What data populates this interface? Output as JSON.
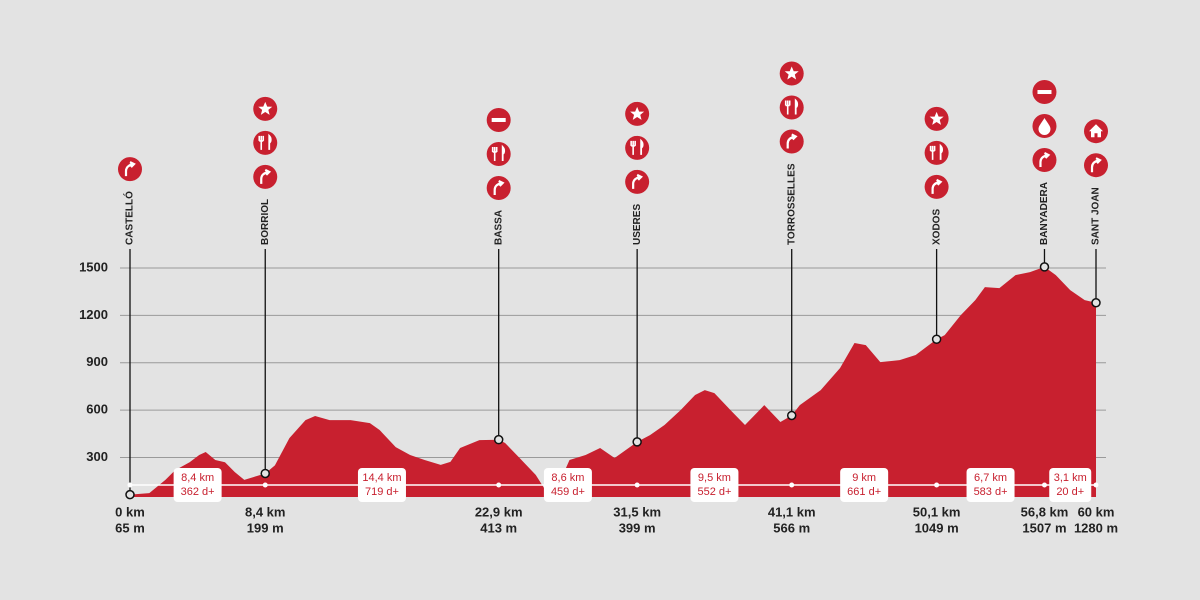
{
  "chart_data": {
    "type": "elevation-profile",
    "color": "#c8202f",
    "xlim": [
      0,
      60
    ],
    "ylim": [
      50,
      1500
    ],
    "yticks": [
      300,
      600,
      900,
      1200,
      1500
    ],
    "grid": true,
    "x": [
      0,
      1.2,
      2.2,
      2.8,
      3.7,
      4.3,
      4.7,
      5.3,
      5.9,
      6.5,
      7.1,
      8.4,
      9.0,
      9.9,
      10.9,
      11.5,
      12.4,
      13.7,
      14.9,
      15.5,
      16.5,
      17.4,
      18.3,
      19.3,
      19.9,
      20.5,
      21.7,
      22.9,
      23.3,
      24.2,
      25.2,
      25.8,
      26.5,
      27.3,
      28.3,
      29.2,
      30.1,
      31.5,
      32.3,
      33.2,
      34.2,
      35.1,
      35.7,
      36.3,
      37.3,
      38.2,
      39.4,
      40.4,
      41.1,
      41.6,
      42.9,
      44.1,
      45.0,
      45.7,
      46.6,
      47.8,
      48.8,
      50.1,
      50.6,
      51.6,
      52.5,
      53.1,
      54.0,
      55.0,
      55.9,
      56.8,
      57.5,
      58.4,
      59.3,
      60
    ],
    "values": [
      65,
      75,
      158,
      220,
      270,
      316,
      335,
      284,
      270,
      208,
      158,
      199,
      250,
      423,
      537,
      563,
      537,
      537,
      518,
      474,
      366,
      316,
      284,
      253,
      272,
      360,
      410,
      413,
      392,
      297,
      190,
      94,
      100,
      284,
      316,
      360,
      297,
      399,
      442,
      506,
      600,
      696,
      727,
      708,
      600,
      506,
      632,
      525,
      566,
      632,
      727,
      866,
      1025,
      1012,
      904,
      917,
      949,
      1049,
      1075,
      1202,
      1297,
      1379,
      1373,
      1455,
      1474,
      1507,
      1455,
      1360,
      1297,
      1280
    ],
    "checkpoints": [
      {
        "name": "CASTELLÓ",
        "km": 0,
        "km_label": "0 km",
        "elevation": 65,
        "elevation_label": "65 m"
      },
      {
        "name": "BORRIOL",
        "km": 8.4,
        "km_label": "8,4 km",
        "elevation": 199,
        "elevation_label": "199 m"
      },
      {
        "name": "BASSA",
        "km": 22.9,
        "km_label": "22,9 km",
        "elevation": 413,
        "elevation_label": "413 m"
      },
      {
        "name": "USERES",
        "km": 31.5,
        "km_label": "31,5 km",
        "elevation": 399,
        "elevation_label": "399 m"
      },
      {
        "name": "TORROSSELLES",
        "km": 41.1,
        "km_label": "41,1 km",
        "elevation": 566,
        "elevation_label": "566 m"
      },
      {
        "name": "XODOS",
        "km": 50.1,
        "km_label": "50,1 km",
        "elevation": 1049,
        "elevation_label": "1049 m"
      },
      {
        "name": "BANYADERA",
        "km": 56.8,
        "km_label": "56,8 km",
        "elevation": 1507,
        "elevation_label": "1507 m"
      },
      {
        "name": "SANT JOAN",
        "km": 60,
        "km_label": "60 km",
        "elevation": 1280,
        "elevation_label": "1280 m"
      }
    ],
    "segments": [
      {
        "distance_label": "8,4 km",
        "climb_label": "362 d+"
      },
      {
        "distance_label": "14,4 km",
        "climb_label": "719 d+"
      },
      {
        "distance_label": "8,6 km",
        "climb_label": "459 d+"
      },
      {
        "distance_label": "9,5 km",
        "climb_label": "552 d+"
      },
      {
        "distance_label": "9 km",
        "climb_label": "661 d+"
      },
      {
        "distance_label": "6,7 km",
        "climb_label": "583 d+"
      },
      {
        "distance_label": "3,1 km",
        "climb_label": "20 d+"
      }
    ]
  }
}
